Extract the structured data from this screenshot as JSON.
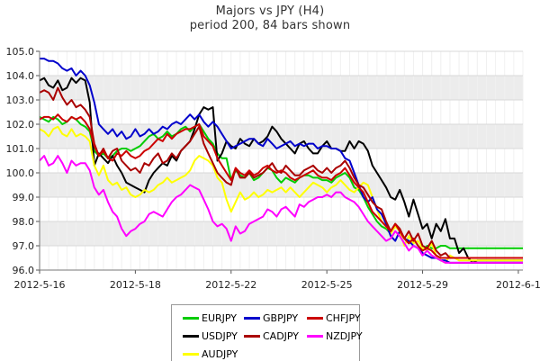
{
  "chart_data": {
    "type": "line",
    "title": "Majors vs JPY (H4)",
    "subtitle": "period 200, 84 bars shown",
    "ylim": [
      96.0,
      105.0
    ],
    "yticks": [
      "96.0",
      "97.0",
      "98.0",
      "99.0",
      "100.0",
      "101.0",
      "102.0",
      "103.0",
      "104.0",
      "105.0"
    ],
    "xticks": [
      "2012-5-16",
      "2012-5-18",
      "2012-5-22",
      "2012-5-25",
      "2012-5-29",
      "2012-6-1"
    ],
    "xtick_index": [
      0,
      21,
      42,
      63,
      84,
      105
    ],
    "x_count": 107,
    "grid": true,
    "legend_position": "bottom",
    "series": [
      {
        "name": "EURJPY",
        "color": "#00cc00",
        "values": [
          102.3,
          102.2,
          102.1,
          102.3,
          102.2,
          102.0,
          102.1,
          102.3,
          102.2,
          102.0,
          101.9,
          101.7,
          100.9,
          100.7,
          100.8,
          100.6,
          100.7,
          100.9,
          101.0,
          101.0,
          100.9,
          101.0,
          101.1,
          101.3,
          101.5,
          101.6,
          101.4,
          101.5,
          101.7,
          101.5,
          101.6,
          101.8,
          101.9,
          101.7,
          101.9,
          102.0,
          101.7,
          101.4,
          101.2,
          100.8,
          100.6,
          100.6,
          99.7,
          100.1,
          99.9,
          99.8,
          100.0,
          99.7,
          99.8,
          100.0,
          100.2,
          100.1,
          99.8,
          99.6,
          99.8,
          99.7,
          99.6,
          99.8,
          99.9,
          99.9,
          99.8,
          99.8,
          99.7,
          99.7,
          99.6,
          99.8,
          99.9,
          100.0,
          99.8,
          99.4,
          99.3,
          99.0,
          98.6,
          98.3,
          98.0,
          97.8,
          97.7,
          97.5,
          97.9,
          97.6,
          97.3,
          97.1,
          97.3,
          97.0,
          96.8,
          97.0,
          96.9,
          96.9,
          97.0,
          97.0,
          96.9,
          96.9,
          96.9,
          96.9,
          96.9,
          96.9,
          96.9,
          96.9,
          96.9,
          96.9,
          96.9,
          96.9,
          96.9,
          96.9,
          96.9,
          96.9,
          96.9
        ]
      },
      {
        "name": "USDJPY",
        "color": "#000000",
        "values": [
          103.8,
          103.9,
          103.6,
          103.5,
          103.8,
          103.4,
          103.5,
          103.9,
          103.7,
          103.9,
          103.8,
          102.9,
          100.3,
          100.8,
          100.6,
          100.4,
          100.7,
          100.3,
          100.0,
          99.6,
          99.5,
          99.4,
          99.3,
          99.2,
          99.7,
          100.0,
          100.2,
          100.4,
          100.3,
          100.7,
          100.5,
          100.9,
          101.1,
          101.3,
          101.8,
          102.4,
          102.7,
          102.6,
          102.7,
          100.5,
          100.8,
          101.3,
          101.1,
          101.0,
          101.4,
          101.2,
          101.1,
          101.4,
          101.2,
          101.3,
          101.5,
          101.9,
          101.7,
          101.4,
          101.2,
          101.0,
          100.8,
          101.2,
          101.3,
          101.0,
          100.8,
          100.8,
          101.1,
          101.3,
          101.0,
          101.0,
          100.9,
          100.9,
          101.3,
          101.0,
          101.3,
          101.2,
          100.9,
          100.3,
          100.0,
          99.7,
          99.4,
          99.0,
          98.9,
          99.3,
          98.8,
          98.2,
          98.9,
          98.3,
          97.7,
          97.9,
          97.3,
          97.9,
          97.6,
          98.1,
          97.3,
          97.3,
          96.7,
          96.9,
          96.5,
          96.3,
          96.4,
          96.4,
          96.4,
          96.4,
          96.4,
          96.4,
          96.4,
          96.4,
          96.4,
          96.4,
          96.4
        ]
      },
      {
        "name": "AUDJPY",
        "color": "#ffff00",
        "values": [
          101.8,
          101.7,
          101.5,
          101.8,
          101.9,
          101.6,
          101.5,
          101.8,
          101.5,
          101.6,
          101.5,
          101.3,
          100.3,
          99.9,
          100.3,
          99.7,
          99.5,
          99.6,
          99.3,
          99.4,
          99.1,
          99.0,
          99.1,
          99.3,
          99.2,
          99.3,
          99.5,
          99.6,
          99.8,
          99.6,
          99.7,
          99.8,
          99.9,
          100.1,
          100.5,
          100.7,
          100.6,
          100.5,
          100.3,
          99.8,
          99.6,
          98.9,
          98.4,
          98.8,
          99.2,
          98.9,
          99.0,
          99.2,
          99.0,
          99.1,
          99.3,
          99.2,
          99.3,
          99.4,
          99.2,
          99.4,
          99.2,
          99.0,
          99.2,
          99.4,
          99.6,
          99.5,
          99.4,
          99.2,
          99.4,
          99.5,
          99.7,
          99.5,
          99.3,
          99.2,
          99.4,
          99.6,
          99.5,
          99.0,
          98.5,
          98.0,
          97.8,
          97.5,
          97.8,
          97.6,
          97.0,
          97.4,
          97.1,
          97.2,
          96.9,
          96.8,
          97.1,
          96.6,
          96.4,
          96.3,
          96.6,
          96.5,
          96.4,
          96.4,
          96.4,
          96.4,
          96.4,
          96.4,
          96.4,
          96.4,
          96.4,
          96.4,
          96.4,
          96.4,
          96.4,
          96.4,
          96.4
        ]
      },
      {
        "name": "GBPJPY",
        "color": "#0000cc",
        "values": [
          104.7,
          104.7,
          104.6,
          104.6,
          104.5,
          104.3,
          104.2,
          104.3,
          104.0,
          104.2,
          104.0,
          103.6,
          102.9,
          102.0,
          101.8,
          101.6,
          101.8,
          101.5,
          101.7,
          101.4,
          101.5,
          101.8,
          101.5,
          101.6,
          101.8,
          101.6,
          101.7,
          101.9,
          101.8,
          102.0,
          102.1,
          102.0,
          102.2,
          102.4,
          102.2,
          102.4,
          102.1,
          101.9,
          102.1,
          101.9,
          101.6,
          101.3,
          101.0,
          101.1,
          101.2,
          101.3,
          101.4,
          101.4,
          101.2,
          101.1,
          101.4,
          101.2,
          101.0,
          101.1,
          101.2,
          101.3,
          101.1,
          101.2,
          101.1,
          101.2,
          101.2,
          101.0,
          101.1,
          101.1,
          101.0,
          101.0,
          100.9,
          100.6,
          100.5,
          100.0,
          99.5,
          99.0,
          98.8,
          99.0,
          98.5,
          98.3,
          97.9,
          97.4,
          97.2,
          97.6,
          97.3,
          97.2,
          97.0,
          96.9,
          96.7,
          96.6,
          96.5,
          96.5,
          96.4,
          96.4,
          96.3,
          96.3,
          96.3,
          96.3,
          96.3,
          96.3,
          96.3,
          96.3,
          96.3,
          96.3,
          96.3,
          96.3,
          96.3,
          96.3,
          96.3,
          96.3,
          96.3
        ]
      },
      {
        "name": "CADJPY",
        "color": "#aa0000",
        "values": [
          103.3,
          103.4,
          103.3,
          103.0,
          103.5,
          103.1,
          102.8,
          103.0,
          102.7,
          102.8,
          102.6,
          102.3,
          101.2,
          100.7,
          101.0,
          100.6,
          100.9,
          101.0,
          100.5,
          100.3,
          100.1,
          100.2,
          100.0,
          100.4,
          100.3,
          100.6,
          100.8,
          100.4,
          100.5,
          100.8,
          100.6,
          100.9,
          101.1,
          101.3,
          101.6,
          101.9,
          101.2,
          100.8,
          100.4,
          100.0,
          99.8,
          99.6,
          99.5,
          100.2,
          99.8,
          99.8,
          100.0,
          99.8,
          99.9,
          100.0,
          100.2,
          100.4,
          100.1,
          100.0,
          100.3,
          100.1,
          99.9,
          99.9,
          100.1,
          100.2,
          100.3,
          100.1,
          100.0,
          100.2,
          100.0,
          100.2,
          100.3,
          100.5,
          100.2,
          99.8,
          99.5,
          99.4,
          99.1,
          98.8,
          98.6,
          98.5,
          98.0,
          97.6,
          97.9,
          97.7,
          97.3,
          97.6,
          97.2,
          97.5,
          97.0,
          96.9,
          97.2,
          96.8,
          96.6,
          96.7,
          96.5,
          96.5,
          96.5,
          96.5,
          96.5,
          96.5,
          96.5,
          96.5,
          96.5,
          96.5,
          96.5,
          96.5,
          96.5,
          96.5,
          96.5,
          96.5,
          96.5
        ]
      },
      {
        "name": "NZDJPY",
        "color": "#ff00ff",
        "values": [
          100.5,
          100.7,
          100.3,
          100.4,
          100.7,
          100.4,
          100.0,
          100.5,
          100.3,
          100.4,
          100.4,
          100.1,
          99.4,
          99.1,
          99.3,
          98.8,
          98.4,
          98.2,
          97.7,
          97.4,
          97.6,
          97.7,
          97.9,
          98.0,
          98.3,
          98.4,
          98.3,
          98.2,
          98.5,
          98.8,
          99.0,
          99.1,
          99.3,
          99.5,
          99.4,
          99.3,
          98.9,
          98.5,
          98.0,
          97.8,
          97.9,
          97.7,
          97.2,
          97.8,
          97.5,
          97.6,
          97.9,
          98.0,
          98.1,
          98.2,
          98.5,
          98.4,
          98.2,
          98.5,
          98.6,
          98.4,
          98.2,
          98.7,
          98.6,
          98.8,
          98.9,
          99.0,
          99.0,
          99.1,
          99.0,
          99.2,
          99.2,
          99.0,
          98.9,
          98.8,
          98.6,
          98.3,
          98.0,
          97.8,
          97.6,
          97.4,
          97.2,
          97.3,
          97.6,
          97.4,
          97.1,
          96.8,
          97.0,
          96.9,
          96.6,
          96.8,
          96.6,
          96.5,
          96.4,
          96.3,
          96.3,
          96.3,
          96.3,
          96.3,
          96.3,
          96.3,
          96.3,
          96.3,
          96.3,
          96.3,
          96.3,
          96.3,
          96.3,
          96.3,
          96.3,
          96.3,
          96.3
        ]
      },
      {
        "name": "CHFJPY",
        "color": "#cc0000",
        "values": [
          102.2,
          102.3,
          102.3,
          102.2,
          102.4,
          102.2,
          102.1,
          102.3,
          102.2,
          102.3,
          102.1,
          101.8,
          101.1,
          100.7,
          100.9,
          100.6,
          100.5,
          100.8,
          100.7,
          100.9,
          100.7,
          100.6,
          100.7,
          100.9,
          101.0,
          101.2,
          101.4,
          101.3,
          101.6,
          101.4,
          101.6,
          101.7,
          101.8,
          101.8,
          101.9,
          102.0,
          101.5,
          101.3,
          101.1,
          100.6,
          100.3,
          100.0,
          99.7,
          100.2,
          100.0,
          99.9,
          100.1,
          99.9,
          100.0,
          100.2,
          100.3,
          100.1,
          100.0,
          100.1,
          100.0,
          99.8,
          99.7,
          99.8,
          99.9,
          100.0,
          100.1,
          99.9,
          99.8,
          99.8,
          99.7,
          99.9,
          100.0,
          100.2,
          99.9,
          99.6,
          99.4,
          99.2,
          98.8,
          98.4,
          98.2,
          98.0,
          97.8,
          97.6,
          97.9,
          97.6,
          97.3,
          97.1,
          97.3,
          97.0,
          96.8,
          96.9,
          96.8,
          96.6,
          96.5,
          96.5,
          96.5,
          96.5,
          96.5,
          96.5,
          96.5,
          96.5,
          96.5,
          96.5,
          96.5,
          96.5,
          96.5,
          96.5,
          96.5,
          96.5,
          96.5,
          96.5,
          96.5
        ]
      }
    ]
  }
}
